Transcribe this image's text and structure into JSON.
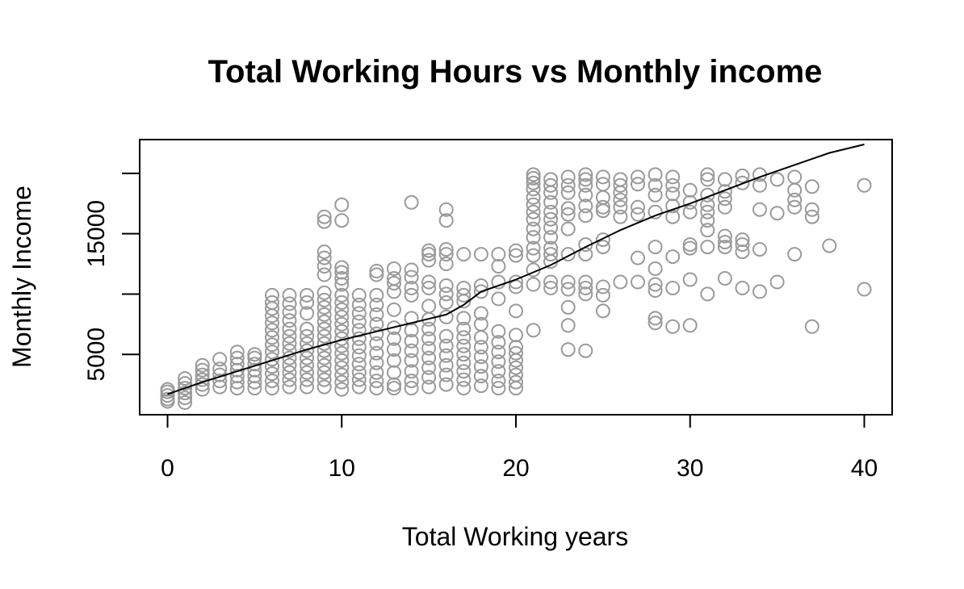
{
  "chart_data": {
    "type": "scatter",
    "title": "Total Working Hours vs Monthly income",
    "xlabel": "Total Working years",
    "ylabel": "Monthly Income",
    "xlim": [
      -1.6,
      41.6
    ],
    "ylim": [
      0,
      22800
    ],
    "x_ticks": [
      0,
      10,
      20,
      30,
      40
    ],
    "y_ticks": [
      5000,
      15000
    ],
    "y_minor_ticks": [
      5000,
      10000,
      15000,
      20000
    ],
    "grid": false,
    "colors": {
      "points": "#9a9a9a",
      "line": "#000000",
      "frame": "#000000"
    },
    "points": [
      [
        0,
        1100
      ],
      [
        0,
        1300
      ],
      [
        0,
        1600
      ],
      [
        0,
        1900
      ],
      [
        0,
        2100
      ],
      [
        1,
        1000
      ],
      [
        1,
        1400
      ],
      [
        1,
        1800
      ],
      [
        1,
        2200
      ],
      [
        1,
        2600
      ],
      [
        1,
        3000
      ],
      [
        2,
        2100
      ],
      [
        2,
        2500
      ],
      [
        2,
        2900
      ],
      [
        2,
        3300
      ],
      [
        2,
        3700
      ],
      [
        2,
        4100
      ],
      [
        3,
        2300
      ],
      [
        3,
        2800
      ],
      [
        3,
        3300
      ],
      [
        3,
        3800
      ],
      [
        3,
        4600
      ],
      [
        4,
        2200
      ],
      [
        4,
        2700
      ],
      [
        4,
        3200
      ],
      [
        4,
        3700
      ],
      [
        4,
        4200
      ],
      [
        4,
        4700
      ],
      [
        4,
        5200
      ],
      [
        5,
        2200
      ],
      [
        5,
        2700
      ],
      [
        5,
        3200
      ],
      [
        5,
        3700
      ],
      [
        5,
        4200
      ],
      [
        5,
        4700
      ],
      [
        5,
        5000
      ],
      [
        6,
        2200
      ],
      [
        6,
        2800
      ],
      [
        6,
        3400
      ],
      [
        6,
        4000
      ],
      [
        6,
        4600
      ],
      [
        6,
        5200
      ],
      [
        6,
        5800
      ],
      [
        6,
        6400
      ],
      [
        6,
        7000
      ],
      [
        6,
        7600
      ],
      [
        6,
        8200
      ],
      [
        6,
        8800
      ],
      [
        6,
        9300
      ],
      [
        6,
        9900
      ],
      [
        7,
        2300
      ],
      [
        7,
        2900
      ],
      [
        7,
        3500
      ],
      [
        7,
        4100
      ],
      [
        7,
        4700
      ],
      [
        7,
        5300
      ],
      [
        7,
        5900
      ],
      [
        7,
        6500
      ],
      [
        7,
        7100
      ],
      [
        7,
        7800
      ],
      [
        7,
        8500
      ],
      [
        7,
        9200
      ],
      [
        7,
        9900
      ],
      [
        8,
        2300
      ],
      [
        8,
        2900
      ],
      [
        8,
        3500
      ],
      [
        8,
        4100
      ],
      [
        8,
        4700
      ],
      [
        8,
        5300
      ],
      [
        8,
        5900
      ],
      [
        8,
        6500
      ],
      [
        8,
        7100
      ],
      [
        8,
        8400
      ],
      [
        8,
        9300
      ],
      [
        8,
        9900
      ],
      [
        9,
        2300
      ],
      [
        9,
        2900
      ],
      [
        9,
        3500
      ],
      [
        9,
        4100
      ],
      [
        9,
        4700
      ],
      [
        9,
        5300
      ],
      [
        9,
        5900
      ],
      [
        9,
        6500
      ],
      [
        9,
        7100
      ],
      [
        9,
        7700
      ],
      [
        9,
        8300
      ],
      [
        9,
        8900
      ],
      [
        9,
        9500
      ],
      [
        9,
        10100
      ],
      [
        9,
        11600
      ],
      [
        9,
        12300
      ],
      [
        9,
        13000
      ],
      [
        9,
        13500
      ],
      [
        9,
        16000
      ],
      [
        9,
        16400
      ],
      [
        10,
        2100
      ],
      [
        10,
        2700
      ],
      [
        10,
        3300
      ],
      [
        10,
        3900
      ],
      [
        10,
        4500
      ],
      [
        10,
        5100
      ],
      [
        10,
        5700
      ],
      [
        10,
        6300
      ],
      [
        10,
        6900
      ],
      [
        10,
        7500
      ],
      [
        10,
        8100
      ],
      [
        10,
        8700
      ],
      [
        10,
        9300
      ],
      [
        10,
        9900
      ],
      [
        10,
        10800
      ],
      [
        10,
        11300
      ],
      [
        10,
        11800
      ],
      [
        10,
        12200
      ],
      [
        10,
        16100
      ],
      [
        10,
        17400
      ],
      [
        11,
        2300
      ],
      [
        11,
        2900
      ],
      [
        11,
        3500
      ],
      [
        11,
        4200
      ],
      [
        11,
        4900
      ],
      [
        11,
        5600
      ],
      [
        11,
        6300
      ],
      [
        11,
        7000
      ],
      [
        11,
        7700
      ],
      [
        11,
        8400
      ],
      [
        11,
        9100
      ],
      [
        11,
        9900
      ],
      [
        12,
        2200
      ],
      [
        12,
        2800
      ],
      [
        12,
        3500
      ],
      [
        12,
        4300
      ],
      [
        12,
        5100
      ],
      [
        12,
        5900
      ],
      [
        12,
        6700
      ],
      [
        12,
        7500
      ],
      [
        12,
        8300
      ],
      [
        12,
        9100
      ],
      [
        12,
        9900
      ],
      [
        12,
        11600
      ],
      [
        12,
        11900
      ],
      [
        13,
        2200
      ],
      [
        13,
        2500
      ],
      [
        13,
        3500
      ],
      [
        13,
        4500
      ],
      [
        13,
        5400
      ],
      [
        13,
        6300
      ],
      [
        13,
        7200
      ],
      [
        13,
        8700
      ],
      [
        13,
        10200
      ],
      [
        13,
        10900
      ],
      [
        13,
        11300
      ],
      [
        13,
        12100
      ],
      [
        14,
        2200
      ],
      [
        14,
        2800
      ],
      [
        14,
        3600
      ],
      [
        14,
        4500
      ],
      [
        14,
        5300
      ],
      [
        14,
        6100
      ],
      [
        14,
        7000
      ],
      [
        14,
        8000
      ],
      [
        14,
        9900
      ],
      [
        14,
        10500
      ],
      [
        14,
        11400
      ],
      [
        14,
        12000
      ],
      [
        14,
        17600
      ],
      [
        15,
        2300
      ],
      [
        15,
        3100
      ],
      [
        15,
        3900
      ],
      [
        15,
        4700
      ],
      [
        15,
        5500
      ],
      [
        15,
        6300
      ],
      [
        15,
        7100
      ],
      [
        15,
        7900
      ],
      [
        15,
        9000
      ],
      [
        15,
        10500
      ],
      [
        15,
        11000
      ],
      [
        15,
        12800
      ],
      [
        15,
        13300
      ],
      [
        15,
        13600
      ],
      [
        16,
        2500
      ],
      [
        16,
        3300
      ],
      [
        16,
        4100
      ],
      [
        16,
        4900
      ],
      [
        16,
        5700
      ],
      [
        16,
        6500
      ],
      [
        16,
        8100
      ],
      [
        16,
        9300
      ],
      [
        16,
        10000
      ],
      [
        16,
        10700
      ],
      [
        16,
        12500
      ],
      [
        16,
        13300
      ],
      [
        16,
        13700
      ],
      [
        16,
        16100
      ],
      [
        16,
        17000
      ],
      [
        17,
        2200
      ],
      [
        17,
        2900
      ],
      [
        17,
        3600
      ],
      [
        17,
        4300
      ],
      [
        17,
        5000
      ],
      [
        17,
        5700
      ],
      [
        17,
        6400
      ],
      [
        17,
        7100
      ],
      [
        17,
        8000
      ],
      [
        17,
        9400
      ],
      [
        17,
        9900
      ],
      [
        17,
        10500
      ],
      [
        17,
        13300
      ],
      [
        18,
        2400
      ],
      [
        18,
        3200
      ],
      [
        18,
        4000
      ],
      [
        18,
        4800
      ],
      [
        18,
        5600
      ],
      [
        18,
        6400
      ],
      [
        18,
        7500
      ],
      [
        18,
        8400
      ],
      [
        18,
        10200
      ],
      [
        18,
        10700
      ],
      [
        18,
        13300
      ],
      [
        19,
        2200
      ],
      [
        19,
        2800
      ],
      [
        19,
        3600
      ],
      [
        19,
        4400
      ],
      [
        19,
        5200
      ],
      [
        19,
        6000
      ],
      [
        19,
        6900
      ],
      [
        19,
        9600
      ],
      [
        19,
        11000
      ],
      [
        19,
        12300
      ],
      [
        19,
        13300
      ],
      [
        20,
        2200
      ],
      [
        20,
        2700
      ],
      [
        20,
        3300
      ],
      [
        20,
        3900
      ],
      [
        20,
        4500
      ],
      [
        20,
        5100
      ],
      [
        20,
        5600
      ],
      [
        20,
        6600
      ],
      [
        20,
        8600
      ],
      [
        20,
        10600
      ],
      [
        20,
        11000
      ],
      [
        20,
        13200
      ],
      [
        20,
        13600
      ],
      [
        21,
        7000
      ],
      [
        21,
        10800
      ],
      [
        21,
        12000
      ],
      [
        21,
        13200
      ],
      [
        21,
        13800
      ],
      [
        21,
        14700
      ],
      [
        21,
        15400
      ],
      [
        21,
        16200
      ],
      [
        21,
        16800
      ],
      [
        21,
        17400
      ],
      [
        21,
        18000
      ],
      [
        21,
        18700
      ],
      [
        21,
        19200
      ],
      [
        21,
        19600
      ],
      [
        21,
        19900
      ],
      [
        22,
        10500
      ],
      [
        22,
        11000
      ],
      [
        22,
        12700
      ],
      [
        22,
        13300
      ],
      [
        22,
        13800
      ],
      [
        22,
        14700
      ],
      [
        22,
        15500
      ],
      [
        22,
        16200
      ],
      [
        22,
        16800
      ],
      [
        22,
        17600
      ],
      [
        22,
        18400
      ],
      [
        22,
        19000
      ],
      [
        22,
        19500
      ],
      [
        23,
        5400
      ],
      [
        23,
        7400
      ],
      [
        23,
        8900
      ],
      [
        23,
        10400
      ],
      [
        23,
        11000
      ],
      [
        23,
        13300
      ],
      [
        23,
        15400
      ],
      [
        23,
        16600
      ],
      [
        23,
        17100
      ],
      [
        23,
        18400
      ],
      [
        23,
        19000
      ],
      [
        23,
        19700
      ],
      [
        24,
        5300
      ],
      [
        24,
        10000
      ],
      [
        24,
        10500
      ],
      [
        24,
        11000
      ],
      [
        24,
        13300
      ],
      [
        24,
        14100
      ],
      [
        24,
        16500
      ],
      [
        24,
        17300
      ],
      [
        24,
        18200
      ],
      [
        24,
        19000
      ],
      [
        24,
        19500
      ],
      [
        24,
        19900
      ],
      [
        25,
        8600
      ],
      [
        25,
        9900
      ],
      [
        25,
        10600
      ],
      [
        25,
        13900
      ],
      [
        25,
        14500
      ],
      [
        25,
        16900
      ],
      [
        25,
        17200
      ],
      [
        25,
        18000
      ],
      [
        25,
        19100
      ],
      [
        25,
        19700
      ],
      [
        26,
        11000
      ],
      [
        26,
        16400
      ],
      [
        26,
        17200
      ],
      [
        26,
        17800
      ],
      [
        26,
        18400
      ],
      [
        26,
        19000
      ],
      [
        26,
        19500
      ],
      [
        27,
        11000
      ],
      [
        27,
        13000
      ],
      [
        27,
        16600
      ],
      [
        27,
        17200
      ],
      [
        27,
        19100
      ],
      [
        27,
        19700
      ],
      [
        28,
        7600
      ],
      [
        28,
        8000
      ],
      [
        28,
        10300
      ],
      [
        28,
        10800
      ],
      [
        28,
        12100
      ],
      [
        28,
        13900
      ],
      [
        28,
        16800
      ],
      [
        28,
        18200
      ],
      [
        28,
        19000
      ],
      [
        28,
        19900
      ],
      [
        29,
        7300
      ],
      [
        29,
        10500
      ],
      [
        29,
        13100
      ],
      [
        29,
        16400
      ],
      [
        29,
        17300
      ],
      [
        29,
        18300
      ],
      [
        29,
        19000
      ],
      [
        29,
        19700
      ],
      [
        30,
        7400
      ],
      [
        30,
        11200
      ],
      [
        30,
        13800
      ],
      [
        30,
        14100
      ],
      [
        30,
        16800
      ],
      [
        30,
        17600
      ],
      [
        30,
        18600
      ],
      [
        31,
        10000
      ],
      [
        31,
        13900
      ],
      [
        31,
        15300
      ],
      [
        31,
        16100
      ],
      [
        31,
        16800
      ],
      [
        31,
        17400
      ],
      [
        31,
        18200
      ],
      [
        31,
        19500
      ],
      [
        31,
        19900
      ],
      [
        32,
        11300
      ],
      [
        32,
        13900
      ],
      [
        32,
        14300
      ],
      [
        32,
        14800
      ],
      [
        32,
        17200
      ],
      [
        32,
        17900
      ],
      [
        32,
        18500
      ],
      [
        32,
        19500
      ],
      [
        33,
        10500
      ],
      [
        33,
        13500
      ],
      [
        33,
        14100
      ],
      [
        33,
        14500
      ],
      [
        33,
        19200
      ],
      [
        33,
        19800
      ],
      [
        34,
        10200
      ],
      [
        34,
        13700
      ],
      [
        34,
        17000
      ],
      [
        34,
        19000
      ],
      [
        34,
        19900
      ],
      [
        35,
        11000
      ],
      [
        35,
        16700
      ],
      [
        35,
        19500
      ],
      [
        36,
        13300
      ],
      [
        36,
        17200
      ],
      [
        36,
        17800
      ],
      [
        36,
        18600
      ],
      [
        36,
        19700
      ],
      [
        37,
        7300
      ],
      [
        37,
        16400
      ],
      [
        37,
        17000
      ],
      [
        37,
        18900
      ],
      [
        38,
        14000
      ],
      [
        40,
        10400
      ],
      [
        40,
        19000
      ]
    ],
    "trend_line": [
      [
        0,
        1700
      ],
      [
        2,
        2700
      ],
      [
        4,
        3600
      ],
      [
        6,
        4500
      ],
      [
        8,
        5400
      ],
      [
        10,
        6200
      ],
      [
        12,
        6900
      ],
      [
        14,
        7600
      ],
      [
        16,
        8300
      ],
      [
        17,
        9100
      ],
      [
        18,
        10200
      ],
      [
        20,
        11200
      ],
      [
        22,
        12400
      ],
      [
        24,
        13900
      ],
      [
        26,
        15300
      ],
      [
        28,
        16500
      ],
      [
        30,
        17500
      ],
      [
        32,
        18600
      ],
      [
        34,
        19700
      ],
      [
        36,
        20700
      ],
      [
        38,
        21700
      ],
      [
        40,
        22400
      ]
    ]
  }
}
